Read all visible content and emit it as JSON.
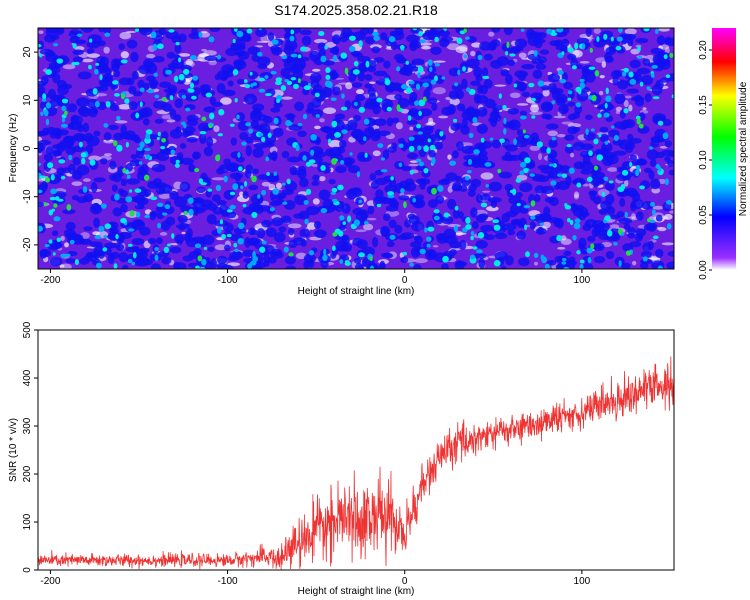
{
  "title": "S174.2025.358.02.21.R18",
  "chart_data": [
    {
      "type": "heatmap",
      "xlabel": "Height of straight line (km)",
      "ylabel": "Frequency (Hz)",
      "xlim": [
        -207,
        152
      ],
      "ylim": [
        -25,
        25
      ],
      "xticks": [
        -200,
        -100,
        0,
        100
      ],
      "xtick_labels": [
        "-200",
        "-100",
        "0",
        "100"
      ],
      "yticks": [
        -20,
        -10,
        0,
        10,
        20
      ],
      "ytick_labels": [
        "-20",
        "-10",
        "0",
        "10",
        "20"
      ],
      "colorbar": {
        "label": "Normalized spectral amplitude",
        "range": [
          0.0,
          0.22
        ],
        "ticks": [
          0.0,
          0.05,
          0.1,
          0.15,
          0.2
        ],
        "tick_labels": [
          "0.00",
          "0.05",
          "0.10",
          "0.15",
          "0.20"
        ],
        "colors": [
          "#ffffff",
          "#9b30ff",
          "#0000ff",
          "#00ffff",
          "#00ff00",
          "#ffff00",
          "#ff0000",
          "#ff00ff"
        ]
      },
      "description_values": "speckle noise, mostly 0.01-0.06 with sparse peaks up to 0.10"
    },
    {
      "type": "line",
      "xlabel": "Height of straight line (km)",
      "ylabel": "SNR (10 * v/v)",
      "xlim": [
        -207,
        152
      ],
      "ylim": [
        0,
        500
      ],
      "xticks": [
        -200,
        -100,
        0,
        100
      ],
      "xtick_labels": [
        "-200",
        "-100",
        "0",
        "100"
      ],
      "yticks": [
        0,
        100,
        200,
        300,
        400,
        500
      ],
      "ytick_labels": [
        "0",
        "100",
        "200",
        "300",
        "400",
        "500"
      ],
      "line_color": "#ee3333",
      "trend": {
        "x": [
          -207,
          -140,
          -100,
          -85,
          -70,
          -60,
          -50,
          -40,
          -30,
          -20,
          -10,
          -5,
          0,
          5,
          10,
          20,
          30,
          50,
          70,
          90,
          100,
          110,
          120,
          130,
          140,
          152
        ],
        "y": [
          20,
          20,
          20,
          25,
          30,
          55,
          80,
          100,
          105,
          110,
          115,
          95,
          70,
          130,
          175,
          235,
          265,
          285,
          300,
          320,
          330,
          345,
          355,
          370,
          380,
          385
        ]
      },
      "noise_amplitude": {
        "x": [
          -207,
          -140,
          -100,
          -85,
          -70,
          -60,
          -50,
          -40,
          -30,
          -20,
          -10,
          -5,
          0,
          5,
          10,
          20,
          30,
          50,
          70,
          90,
          100,
          110,
          120,
          130,
          140,
          152
        ],
        "y": [
          12,
          12,
          12,
          15,
          28,
          45,
          55,
          60,
          65,
          75,
          75,
          55,
          45,
          45,
          40,
          35,
          35,
          30,
          28,
          28,
          30,
          32,
          35,
          38,
          45,
          50
        ]
      }
    }
  ]
}
